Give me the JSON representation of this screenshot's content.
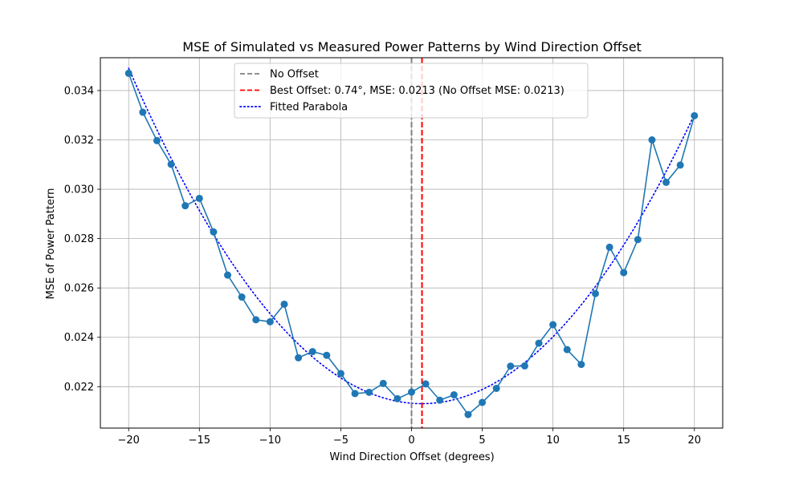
{
  "chart_data": {
    "type": "line",
    "title": "MSE of Simulated vs Measured Power Patterns by Wind Direction Offset",
    "xlabel": "Wind Direction Offset (degrees)",
    "ylabel": "MSE of Power Pattern",
    "xlim": [
      -22,
      22
    ],
    "ylim": [
      0.02032,
      0.03533
    ],
    "xticks": [
      -20,
      -15,
      -10,
      -5,
      0,
      5,
      10,
      15,
      20
    ],
    "xtick_labels": [
      "−20",
      "−15",
      "−10",
      "−5",
      "0",
      "5",
      "10",
      "15",
      "20"
    ],
    "yticks": [
      0.022,
      0.024,
      0.026,
      0.028,
      0.03,
      0.032,
      0.034
    ],
    "ytick_labels": [
      "0.022",
      "0.024",
      "0.026",
      "0.028",
      "0.030",
      "0.032",
      "0.034"
    ],
    "grid": true,
    "legend_position": "top-center",
    "x": [
      -20,
      -19,
      -18,
      -17,
      -16,
      -15,
      -14,
      -13,
      -12,
      -11,
      -10,
      -9,
      -8,
      -7,
      -6,
      -5,
      -4,
      -3,
      -2,
      -1,
      0,
      1,
      2,
      3,
      4,
      5,
      6,
      7,
      8,
      9,
      10,
      11,
      12,
      13,
      14,
      15,
      16,
      17,
      18,
      19,
      20
    ],
    "series": [
      {
        "values": [
          0.0347,
          0.03312,
          0.03197,
          0.03101,
          0.02933,
          0.02963,
          0.02827,
          0.02652,
          0.02563,
          0.02471,
          0.02463,
          0.02534,
          0.02317,
          0.02342,
          0.02327,
          0.02253,
          0.02172,
          0.02177,
          0.02213,
          0.02151,
          0.02178,
          0.02211,
          0.02145,
          0.02167,
          0.02087,
          0.02136,
          0.02193,
          0.02283,
          0.02284,
          0.02376,
          0.02451,
          0.0235,
          0.0229,
          0.02577,
          0.02765,
          0.02662,
          0.02796,
          0.032,
          0.03028,
          0.03098,
          0.03298
        ],
        "color": "#1f77b4",
        "style": "solid with circle markers"
      }
    ],
    "reference_lines": [
      {
        "name": "No Offset",
        "x": 0,
        "color": "#808080",
        "style": "dashed"
      },
      {
        "name": "Best Offset: 0.74°, MSE: 0.0213 (No Offset MSE: 0.0213)",
        "x": 0.74,
        "color": "#ff0000",
        "style": "dashed"
      }
    ],
    "fitted_curve": {
      "name": "Fitted Parabola",
      "color": "#0000ff",
      "style": "dotted",
      "x_range": [
        -20,
        20
      ],
      "coefficients": {
        "a": 3.16e-05,
        "vertex_x": 0.74,
        "vertex_y": 0.02131
      }
    },
    "legend": [
      {
        "label": "No Offset",
        "color": "#808080",
        "style": "dashed"
      },
      {
        "label": "Best Offset: 0.74°, MSE: 0.0213 (No Offset MSE: 0.0213)",
        "color": "#ff0000",
        "style": "dashed"
      },
      {
        "label": "Fitted Parabola",
        "color": "#0000ff",
        "style": "dotted"
      }
    ]
  }
}
